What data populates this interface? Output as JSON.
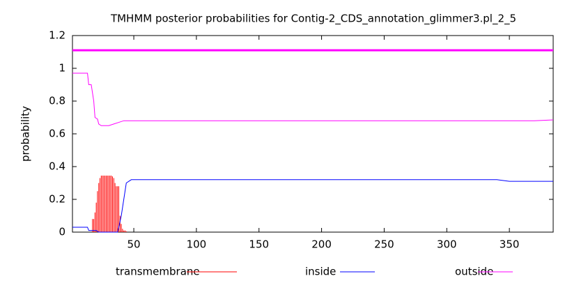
{
  "chart_data": {
    "type": "line",
    "title": "TMHMM posterior probabilities for Contig-2_CDS_annotation_glimmer3.pl_2_5",
    "ylabel": "probability",
    "xlim": [
      1,
      385
    ],
    "ylim": [
      0,
      1.2
    ],
    "xticks": [
      50,
      100,
      150,
      200,
      250,
      300,
      350
    ],
    "yticks": [
      0,
      0.2,
      0.4,
      0.6,
      0.8,
      1,
      1.2
    ],
    "topology": [
      {
        "start": 1,
        "end": 385,
        "y": 1.11,
        "color": "#ff00ff"
      }
    ],
    "series": [
      {
        "name": "transmembrane",
        "color": "#ff0000",
        "style": "impulses",
        "x": [
          17,
          18,
          19,
          20,
          21,
          22,
          23,
          24,
          25,
          26,
          27,
          28,
          29,
          30,
          31,
          32,
          33,
          34,
          35,
          36,
          37,
          38,
          39,
          40,
          41,
          42,
          43,
          44
        ],
        "values": [
          0.08,
          0.08,
          0.12,
          0.18,
          0.25,
          0.3,
          0.33,
          0.345,
          0.345,
          0.345,
          0.345,
          0.345,
          0.345,
          0.345,
          0.345,
          0.345,
          0.34,
          0.33,
          0.3,
          0.28,
          0.28,
          0.28,
          0.1,
          0.05,
          0.02,
          0.01,
          0.01,
          0.005
        ]
      },
      {
        "name": "inside",
        "color": "#0000ff",
        "style": "line",
        "x": [
          1,
          13,
          14,
          20,
          22,
          37,
          38,
          40,
          42,
          44,
          48,
          340,
          350,
          385
        ],
        "values": [
          0.03,
          0.03,
          0.01,
          0.01,
          0,
          0,
          0.03,
          0.1,
          0.2,
          0.3,
          0.32,
          0.32,
          0.31,
          0.31
        ]
      },
      {
        "name": "outside",
        "color": "#ff00ff",
        "style": "line",
        "x": [
          1,
          13,
          14,
          16,
          17,
          18,
          19,
          21,
          22,
          24,
          30,
          34,
          38,
          42,
          50,
          370,
          385
        ],
        "values": [
          0.97,
          0.97,
          0.9,
          0.9,
          0.85,
          0.8,
          0.7,
          0.69,
          0.66,
          0.65,
          0.65,
          0.66,
          0.67,
          0.68,
          0.68,
          0.68,
          0.685
        ]
      }
    ]
  }
}
